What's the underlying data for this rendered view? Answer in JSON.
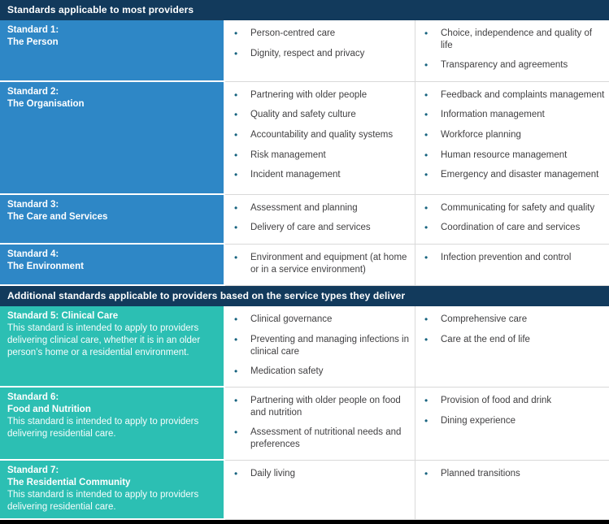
{
  "colors": {
    "navy": "#123a5c",
    "blue": "#2e87c6",
    "teal": "#2cbfb3",
    "bullet": "#17637f",
    "text": "#414042",
    "grid": "#d9d9d9",
    "bottom_bar": "#000000"
  },
  "sections": [
    {
      "header": "Standards applicable to most providers",
      "row_color": "#2e87c6",
      "rows": [
        {
          "title_lines": [
            "Standard 1:",
            "The Person"
          ],
          "description": "",
          "col1": [
            "Person-centred care",
            "Dignity, respect and privacy"
          ],
          "col2": [
            "Choice, independence and quality of life",
            "Transparency and agreements"
          ]
        },
        {
          "title_lines": [
            "Standard 2:",
            "The Organisation"
          ],
          "description": "",
          "col1": [
            "Partnering with older people",
            "Quality and safety culture",
            "Accountability and quality systems",
            "Risk management",
            "Incident management"
          ],
          "col2": [
            "Feedback and complaints management",
            "Information management",
            "Workforce planning",
            "Human resource management",
            "Emergency and disaster management"
          ]
        },
        {
          "title_lines": [
            "Standard 3:",
            "The Care and Services"
          ],
          "description": "",
          "col1": [
            "Assessment and planning",
            "Delivery of care and services"
          ],
          "col2": [
            "Communicating for safety and quality",
            "Coordination of care and services"
          ]
        },
        {
          "title_lines": [
            "Standard 4:",
            "The Environment"
          ],
          "description": "",
          "col1": [
            "Environment and equipment (at home or in a service environment)"
          ],
          "col2": [
            "Infection prevention and control"
          ]
        }
      ]
    },
    {
      "header": "Additional standards applicable to providers based on the service types they deliver",
      "row_color": "#2cbfb3",
      "rows": [
        {
          "title_lines": [
            "Standard 5: Clinical Care"
          ],
          "description": "This standard is intended to apply to providers delivering clinical care, whether it is in an older person’s home or a residential environment.",
          "col1": [
            "Clinical governance",
            "Preventing and managing infections in clinical care",
            "Medication safety"
          ],
          "col2": [
            "Comprehensive care",
            "Care at the end of life"
          ]
        },
        {
          "title_lines": [
            "Standard 6:",
            "Food and Nutrition"
          ],
          "description": "This standard is intended to apply to providers delivering residential care.",
          "col1": [
            "Partnering with older people on food and nutrition",
            "Assessment of nutritional needs and preferences"
          ],
          "col2": [
            "Provision of food and drink",
            "Dining experience"
          ]
        },
        {
          "title_lines": [
            "Standard 7:",
            "The Residential Community"
          ],
          "description": "This standard is intended to apply to providers delivering residential care.",
          "col1": [
            "Daily living"
          ],
          "col2": [
            "Planned transitions"
          ]
        }
      ]
    }
  ]
}
